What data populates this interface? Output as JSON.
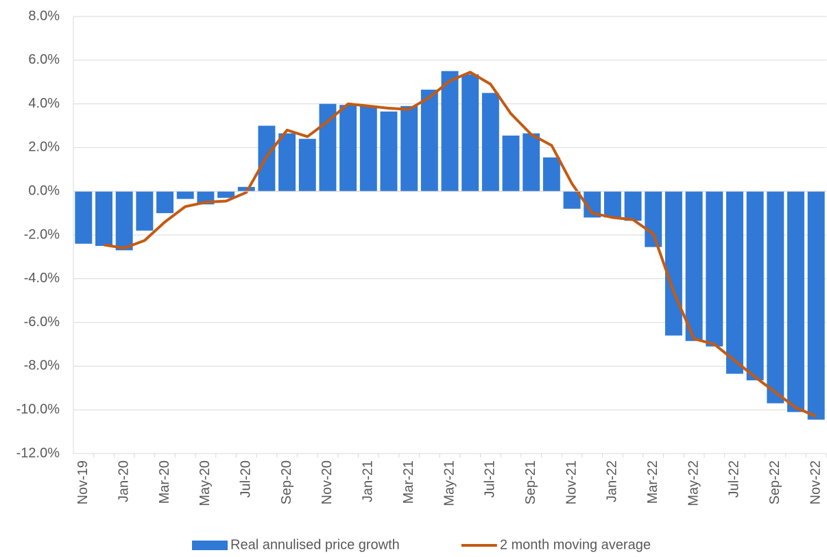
{
  "chart_data": {
    "type": "bar-line",
    "categories": [
      "Nov-19",
      null,
      "Jan-20",
      null,
      "Mar-20",
      null,
      "May-20",
      null,
      "Jul-20",
      null,
      "Sep-20",
      null,
      "Nov-20",
      null,
      "Jan-21",
      null,
      "Mar-21",
      null,
      "May-21",
      null,
      "Jul-21",
      null,
      "Sep-21",
      null,
      "Nov-21",
      null,
      "Jan-22",
      null,
      "Mar-22",
      null,
      "May-22",
      null,
      "Jul-22",
      null,
      "Sep-22",
      null,
      "Nov-22"
    ],
    "series": [
      {
        "name": "Real annulised price growth",
        "type": "bar",
        "color": "#3079d6",
        "values": [
          -2.4,
          -2.5,
          -2.7,
          -1.8,
          -1.0,
          -0.35,
          -0.6,
          -0.3,
          0.2,
          3.0,
          2.65,
          2.4,
          4.0,
          3.95,
          3.9,
          3.65,
          3.9,
          4.65,
          5.5,
          5.35,
          4.5,
          2.55,
          2.65,
          1.55,
          -0.8,
          -1.2,
          -1.2,
          -1.35,
          -2.55,
          -6.6,
          -6.85,
          -7.1,
          -8.35,
          -8.65,
          -9.7,
          -10.1,
          -10.45
        ]
      },
      {
        "name": "2 month moving average",
        "type": "line",
        "color": "#c55a11",
        "values": [
          null,
          -2.45,
          -2.6,
          -2.25,
          -1.4,
          -0.7,
          -0.5,
          -0.45,
          -0.05,
          1.6,
          2.8,
          2.5,
          3.2,
          4.0,
          3.9,
          3.8,
          3.75,
          4.3,
          5.05,
          5.45,
          4.9,
          3.55,
          2.6,
          2.1,
          0.35,
          -1.0,
          -1.2,
          -1.3,
          -1.95,
          -4.6,
          -6.75,
          -7.0,
          -7.75,
          -8.5,
          -9.2,
          -9.9,
          -10.3
        ]
      }
    ],
    "ylim": [
      -12,
      8
    ],
    "yticks": [
      {
        "value": -12,
        "label": "-12.0%"
      },
      {
        "value": -10,
        "label": "-10.0%"
      },
      {
        "value": -8,
        "label": "-8.0%"
      },
      {
        "value": -6,
        "label": "-6.0%"
      },
      {
        "value": -4,
        "label": "-4.0%"
      },
      {
        "value": -2,
        "label": "-2.0%"
      },
      {
        "value": 0,
        "label": "0.0%"
      },
      {
        "value": 2,
        "label": "2.0%"
      },
      {
        "value": 4,
        "label": "4.0%"
      },
      {
        "value": 6,
        "label": "6.0%"
      },
      {
        "value": 8,
        "label": "8.0%"
      }
    ],
    "grid": true,
    "legend": "bottom"
  }
}
